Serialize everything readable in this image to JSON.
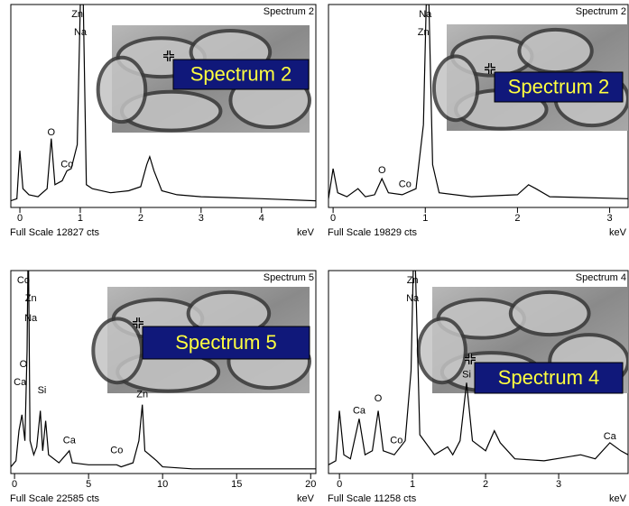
{
  "chart_data": [
    {
      "type": "line",
      "title": "Spectrum 2",
      "inset_label": "Spectrum 2",
      "footer": "Full Scale 12827 cts",
      "xlabel": "keV",
      "color": "#000000",
      "xlim": [
        -0.15,
        4.9
      ],
      "xticks": [
        0,
        1,
        2,
        3,
        4
      ],
      "ylim": [
        0,
        100
      ],
      "x": [
        -0.15,
        -0.05,
        0.0,
        0.05,
        0.15,
        0.3,
        0.45,
        0.52,
        0.58,
        0.7,
        0.78,
        0.85,
        0.95,
        1.0,
        1.05,
        1.1,
        1.2,
        1.5,
        1.8,
        2.0,
        2.1,
        2.15,
        2.22,
        2.35,
        2.6,
        3.0,
        4.0,
        4.9
      ],
      "values": [
        2,
        3,
        27,
        8,
        5,
        4,
        8,
        33,
        10,
        12,
        17,
        18,
        30,
        100,
        100,
        10,
        8,
        6,
        7,
        9,
        20,
        24,
        17,
        7,
        5,
        4,
        3,
        2
      ],
      "annotations": [
        {
          "text": "Zn",
          "x": 0.95,
          "y": 95
        },
        {
          "text": "Na",
          "x": 1.0,
          "y": 86
        },
        {
          "text": "O",
          "x": 0.52,
          "y": 36
        },
        {
          "text": "Co",
          "x": 0.78,
          "y": 20
        }
      ]
    },
    {
      "type": "line",
      "title": "Spectrum 2",
      "inset_label": "Spectrum 2",
      "footer": "Full Scale 19829 cts",
      "xlabel": "keV",
      "color": "#000000",
      "xlim": [
        -0.05,
        3.2
      ],
      "xticks": [
        0,
        1,
        2,
        3
      ],
      "ylim": [
        0,
        100
      ],
      "x": [
        -0.05,
        0.0,
        0.05,
        0.15,
        0.27,
        0.35,
        0.45,
        0.53,
        0.6,
        0.75,
        0.9,
        0.98,
        1.01,
        1.04,
        1.08,
        1.15,
        1.5,
        2.0,
        2.12,
        2.2,
        2.35,
        3.2
      ],
      "values": [
        3,
        18,
        6,
        4,
        8,
        4,
        5,
        13,
        6,
        5,
        8,
        40,
        100,
        100,
        20,
        6,
        4,
        5,
        10,
        8,
        4,
        3
      ],
      "annotations": [
        {
          "text": "Na",
          "x": 1.0,
          "y": 95
        },
        {
          "text": "Zn",
          "x": 0.98,
          "y": 86
        },
        {
          "text": "O",
          "x": 0.53,
          "y": 17
        },
        {
          "text": "Co",
          "x": 0.78,
          "y": 10
        }
      ]
    },
    {
      "type": "line",
      "title": "Spectrum 5",
      "inset_label": "Spectrum 5",
      "footer": "Full Scale 22585 cts",
      "xlabel": "keV",
      "color": "#000000",
      "xlim": [
        -0.25,
        20.35
      ],
      "xticks": [
        0,
        5,
        10,
        15,
        20
      ],
      "ylim": [
        0,
        100
      ],
      "x": [
        -0.25,
        0.1,
        0.3,
        0.5,
        0.7,
        0.85,
        0.9,
        0.95,
        1.05,
        1.3,
        1.5,
        1.74,
        1.9,
        2.1,
        2.3,
        3.0,
        3.7,
        3.9,
        5,
        6.9,
        7.2,
        8.0,
        8.4,
        8.63,
        8.8,
        9.6,
        10,
        12,
        20.35
      ],
      "values": [
        2,
        5,
        20,
        28,
        15,
        60,
        100,
        100,
        15,
        8,
        12,
        30,
        10,
        25,
        8,
        4,
        10,
        4,
        3,
        3,
        2,
        4,
        15,
        33,
        10,
        5,
        2,
        1,
        1
      ],
      "annotations": [
        {
          "text": "Co",
          "x": 0.6,
          "y": 95
        },
        {
          "text": "Zn",
          "x": 1.1,
          "y": 86
        },
        {
          "text": "Na",
          "x": 1.1,
          "y": 76
        },
        {
          "text": "O",
          "x": 0.6,
          "y": 53
        },
        {
          "text": "Ca",
          "x": 0.37,
          "y": 44
        },
        {
          "text": "Si",
          "x": 1.85,
          "y": 40
        },
        {
          "text": "Ca",
          "x": 3.7,
          "y": 15
        },
        {
          "text": "Co",
          "x": 6.9,
          "y": 10
        },
        {
          "text": "Zn",
          "x": 8.63,
          "y": 38
        }
      ]
    },
    {
      "type": "line",
      "title": "Spectrum 4",
      "inset_label": "Spectrum 4",
      "footer": "Full Scale 11258 cts",
      "xlabel": "keV",
      "color": "#000000",
      "xlim": [
        -0.15,
        3.95
      ],
      "xticks": [
        0,
        1,
        2,
        3
      ],
      "ylim": [
        0,
        100
      ],
      "x": [
        -0.15,
        -0.05,
        0.0,
        0.06,
        0.15,
        0.27,
        0.35,
        0.45,
        0.53,
        0.6,
        0.75,
        0.9,
        0.98,
        1.01,
        1.04,
        1.1,
        1.3,
        1.48,
        1.55,
        1.65,
        1.74,
        1.82,
        2.0,
        2.12,
        2.2,
        2.4,
        2.8,
        3.3,
        3.5,
        3.7,
        3.85,
        3.95
      ],
      "values": [
        3,
        5,
        30,
        8,
        6,
        26,
        8,
        10,
        30,
        10,
        8,
        15,
        50,
        100,
        100,
        18,
        8,
        12,
        8,
        15,
        44,
        15,
        10,
        20,
        14,
        6,
        5,
        8,
        6,
        14,
        10,
        8
      ],
      "annotations": [
        {
          "text": "Zn",
          "x": 1.0,
          "y": 95
        },
        {
          "text": "Na",
          "x": 1.0,
          "y": 86
        },
        {
          "text": "O",
          "x": 0.53,
          "y": 36
        },
        {
          "text": "Ca",
          "x": 0.27,
          "y": 30
        },
        {
          "text": "Co",
          "x": 0.78,
          "y": 15
        },
        {
          "text": "Si",
          "x": 1.74,
          "y": 48
        },
        {
          "text": "Ca",
          "x": 3.7,
          "y": 17
        }
      ]
    }
  ]
}
